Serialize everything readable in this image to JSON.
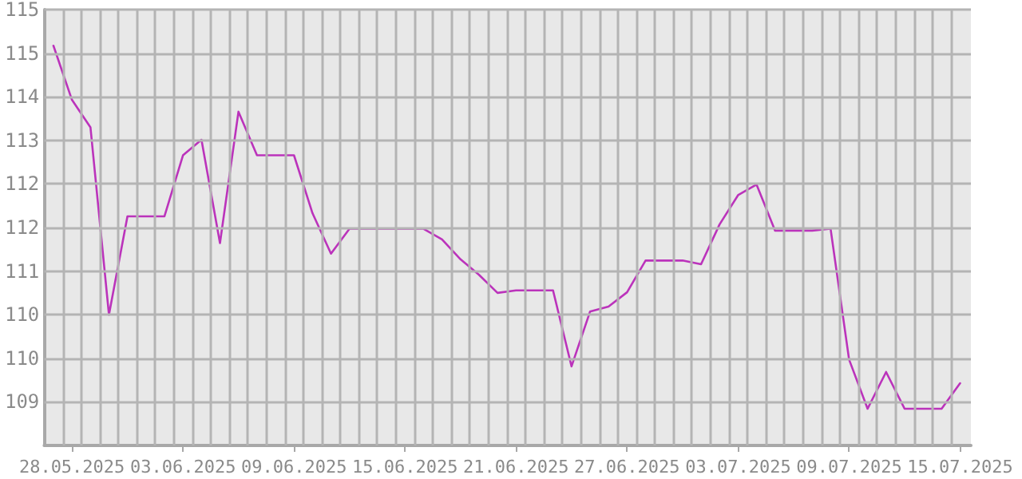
{
  "chart_data": {
    "type": "line",
    "marker": "none",
    "grid": true,
    "line_style": "solid",
    "x": [
      "2025-05-27",
      "2025-05-28",
      "2025-05-29",
      "2025-05-30",
      "2025-05-31",
      "2025-06-01",
      "2025-06-02",
      "2025-06-03",
      "2025-06-04",
      "2025-06-05",
      "2025-06-06",
      "2025-06-07",
      "2025-06-08",
      "2025-06-09",
      "2025-06-10",
      "2025-06-11",
      "2025-06-12",
      "2025-06-13",
      "2025-06-14",
      "2025-06-15",
      "2025-06-16",
      "2025-06-17",
      "2025-06-18",
      "2025-06-19",
      "2025-06-20",
      "2025-06-21",
      "2025-06-22",
      "2025-06-23",
      "2025-06-24",
      "2025-06-25",
      "2025-06-26",
      "2025-06-27",
      "2025-06-28",
      "2025-06-29",
      "2025-06-30",
      "2025-07-01",
      "2025-07-02",
      "2025-07-03",
      "2025-07-04",
      "2025-07-05",
      "2025-07-06",
      "2025-07-07",
      "2025-07-08",
      "2025-07-09",
      "2025-07-10",
      "2025-07-11",
      "2025-07-12",
      "2025-07-13",
      "2025-07-14",
      "2025-07-15"
    ],
    "series": [
      {
        "color": "#bb33bb",
        "values": [
          114.67,
          113.8,
          113.36,
          110.35,
          111.93,
          111.93,
          111.93,
          112.91,
          113.16,
          111.5,
          113.61,
          112.91,
          112.91,
          112.91,
          111.98,
          111.33,
          111.73,
          111.73,
          111.73,
          111.73,
          111.73,
          111.56,
          111.24,
          110.99,
          110.7,
          110.74,
          110.74,
          110.74,
          109.52,
          110.4,
          110.48,
          110.71,
          111.22,
          111.22,
          111.22,
          111.16,
          111.8,
          112.27,
          112.44,
          111.7,
          111.7,
          111.7,
          111.73,
          109.63,
          108.84,
          109.43,
          108.84,
          108.84,
          108.84,
          109.25
        ]
      }
    ],
    "ylim": [
      108.25,
      115.25
    ],
    "yticks": [
      {
        "value": 108.95,
        "label": "109"
      },
      {
        "value": 109.65,
        "label": "110"
      },
      {
        "value": 110.35,
        "label": "110"
      },
      {
        "value": 111.05,
        "label": "111"
      },
      {
        "value": 111.75,
        "label": "112"
      },
      {
        "value": 112.45,
        "label": "112"
      },
      {
        "value": 113.15,
        "label": "113"
      },
      {
        "value": 113.85,
        "label": "114"
      },
      {
        "value": 114.55,
        "label": "115"
      },
      {
        "value": 115.25,
        "label": "115"
      }
    ],
    "xlim": [
      "2025-05-26T12:00",
      "2025-07-15T14:00"
    ],
    "xticks": [
      {
        "value": "2025-05-27T12:00",
        "label": null
      },
      {
        "value": "2025-05-28",
        "label": "28.05.2025"
      },
      {
        "value": "2025-05-28T12:00",
        "label": null
      },
      {
        "value": "2025-05-29T12:00",
        "label": null
      },
      {
        "value": "2025-05-30T12:00",
        "label": null
      },
      {
        "value": "2025-05-31T12:00",
        "label": null
      },
      {
        "value": "2025-06-01T12:00",
        "label": null
      },
      {
        "value": "2025-06-02T12:00",
        "label": null
      },
      {
        "value": "2025-06-03",
        "label": "03.06.2025"
      },
      {
        "value": "2025-06-03T12:00",
        "label": null
      },
      {
        "value": "2025-06-04T12:00",
        "label": null
      },
      {
        "value": "2025-06-05T12:00",
        "label": null
      },
      {
        "value": "2025-06-06T12:00",
        "label": null
      },
      {
        "value": "2025-06-07T12:00",
        "label": null
      },
      {
        "value": "2025-06-08T12:00",
        "label": null
      },
      {
        "value": "2025-06-09",
        "label": "09.06.2025"
      },
      {
        "value": "2025-06-09T12:00",
        "label": null
      },
      {
        "value": "2025-06-10T12:00",
        "label": null
      },
      {
        "value": "2025-06-11T12:00",
        "label": null
      },
      {
        "value": "2025-06-12T12:00",
        "label": null
      },
      {
        "value": "2025-06-13T12:00",
        "label": null
      },
      {
        "value": "2025-06-14T12:00",
        "label": null
      },
      {
        "value": "2025-06-15",
        "label": "15.06.2025"
      },
      {
        "value": "2025-06-15T12:00",
        "label": null
      },
      {
        "value": "2025-06-16T12:00",
        "label": null
      },
      {
        "value": "2025-06-17T12:00",
        "label": null
      },
      {
        "value": "2025-06-18T12:00",
        "label": null
      },
      {
        "value": "2025-06-19T12:00",
        "label": null
      },
      {
        "value": "2025-06-20T12:00",
        "label": null
      },
      {
        "value": "2025-06-21",
        "label": "21.06.2025"
      },
      {
        "value": "2025-06-21T12:00",
        "label": null
      },
      {
        "value": "2025-06-22T12:00",
        "label": null
      },
      {
        "value": "2025-06-23T12:00",
        "label": null
      },
      {
        "value": "2025-06-24T12:00",
        "label": null
      },
      {
        "value": "2025-06-25T12:00",
        "label": null
      },
      {
        "value": "2025-06-26T12:00",
        "label": null
      },
      {
        "value": "2025-06-27",
        "label": "27.06.2025"
      },
      {
        "value": "2025-06-27T12:00",
        "label": null
      },
      {
        "value": "2025-06-28T12:00",
        "label": null
      },
      {
        "value": "2025-06-29T12:00",
        "label": null
      },
      {
        "value": "2025-06-30T12:00",
        "label": null
      },
      {
        "value": "2025-07-01T12:00",
        "label": null
      },
      {
        "value": "2025-07-02T12:00",
        "label": null
      },
      {
        "value": "2025-07-03",
        "label": "03.07.2025"
      },
      {
        "value": "2025-07-03T12:00",
        "label": null
      },
      {
        "value": "2025-07-04T12:00",
        "label": null
      },
      {
        "value": "2025-07-05T12:00",
        "label": null
      },
      {
        "value": "2025-07-06T12:00",
        "label": null
      },
      {
        "value": "2025-07-07T12:00",
        "label": null
      },
      {
        "value": "2025-07-08T12:00",
        "label": null
      },
      {
        "value": "2025-07-09",
        "label": "09.07.2025"
      },
      {
        "value": "2025-07-09T12:00",
        "label": null
      },
      {
        "value": "2025-07-10T12:00",
        "label": null
      },
      {
        "value": "2025-07-11T12:00",
        "label": null
      },
      {
        "value": "2025-07-12T12:00",
        "label": null
      },
      {
        "value": "2025-07-13T12:00",
        "label": null
      },
      {
        "value": "2025-07-14T12:00",
        "label": null
      },
      {
        "value": "2025-07-15",
        "label": "15.07.2025"
      }
    ]
  }
}
